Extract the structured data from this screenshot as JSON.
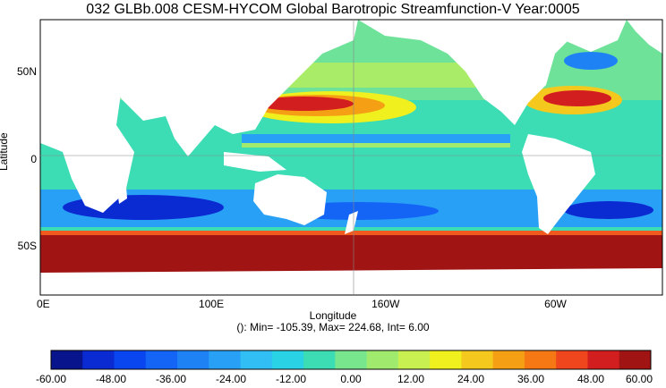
{
  "title": "032 GLBb.008 CESM-HYCOM Global Barotropic Streamfunction-V Year:0005",
  "ylabel": "Latitude",
  "xlabel": "Longitude",
  "lat_ticks": [
    {
      "label": "50N",
      "lat": 50
    },
    {
      "label": "0",
      "lat": 0
    },
    {
      "label": "50S",
      "lat": -50
    }
  ],
  "lon_ticks": [
    {
      "label": "0E",
      "lon": 0
    },
    {
      "label": "100E",
      "lon": 100
    },
    {
      "label": "160W",
      "lon": 200
    },
    {
      "label": "60W",
      "lon": 300
    }
  ],
  "stats": "(): Min= -105.39, Max= 224.68, Int= 6.00",
  "colorbar": {
    "colors": [
      "#08148c",
      "#0a2ad2",
      "#0a46f0",
      "#1464f5",
      "#1e82f5",
      "#28a0f5",
      "#30bef5",
      "#2ad2e6",
      "#3cdcb4",
      "#78e68c",
      "#a0eb6e",
      "#c8f050",
      "#f0f01e",
      "#f5c81e",
      "#f5a014",
      "#f57814",
      "#f0461e",
      "#d21e1e",
      "#a01414"
    ],
    "ticks": [
      {
        "label": "-60.00",
        "value": -60
      },
      {
        "label": "-48.00",
        "value": -48
      },
      {
        "label": "-36.00",
        "value": -36
      },
      {
        "label": "-24.00",
        "value": -24
      },
      {
        "label": "-12.00",
        "value": -12
      },
      {
        "label": "0.00",
        "value": 0
      },
      {
        "label": "12.00",
        "value": 12
      },
      {
        "label": "24.00",
        "value": 24
      },
      {
        "label": "36.00",
        "value": 36
      },
      {
        "label": "48.00",
        "value": 48
      },
      {
        "label": "60.00",
        "value": 60
      }
    ],
    "min": -60,
    "max": 60
  }
}
